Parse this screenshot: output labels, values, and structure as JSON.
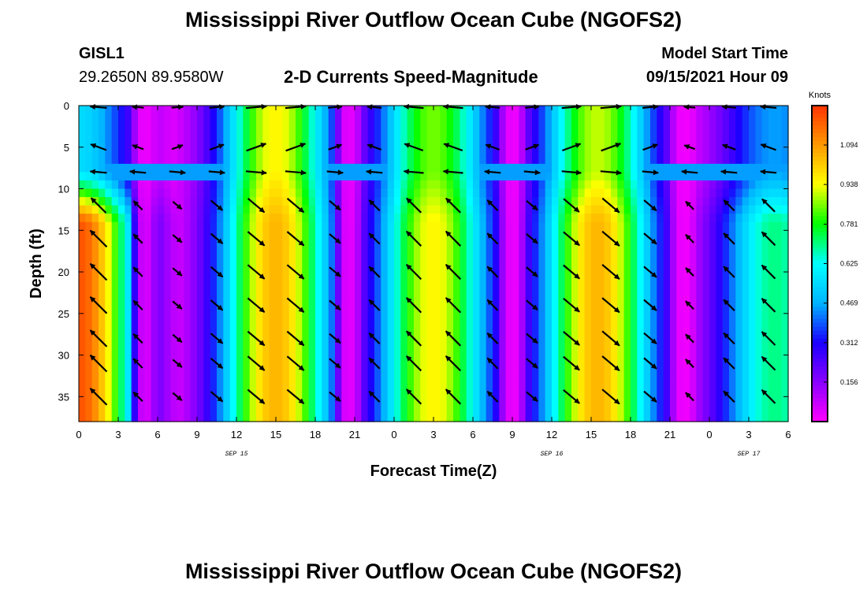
{
  "page": {
    "title_top": "Mississippi River Outflow Ocean Cube (NGOFS2)",
    "title_bottom": "Mississippi River Outflow Ocean Cube (NGOFS2)",
    "station_id": "GISL1",
    "station_coords": "29.2650N  89.9580W",
    "product_title": "2-D Currents Speed-Magnitude",
    "model_start_label": "Model Start Time",
    "model_start_value": "09/15/2021 Hour 09"
  },
  "colors": {
    "scale": [
      "#ff00ff",
      "#8a00ff",
      "#1a00ff",
      "#00b4ff",
      "#00ffff",
      "#00ff00",
      "#ffff00",
      "#ff9900",
      "#ff3300"
    ]
  },
  "chart_data": {
    "type": "heatmap",
    "title": "2-D Currents Speed-Magnitude",
    "xlabel": "Forecast Time(Z)",
    "ylabel": "Depth (ft)",
    "xlim": [
      0,
      54
    ],
    "ylim": [
      38,
      0
    ],
    "x_ticks": [
      "0",
      "3",
      "6",
      "9",
      "12",
      "15",
      "18",
      "21",
      "0",
      "3",
      "6",
      "9",
      "12",
      "15",
      "18",
      "21",
      "0",
      "3",
      "6"
    ],
    "y_ticks": [
      "0",
      "5",
      "10",
      "15",
      "20",
      "25",
      "30",
      "35"
    ],
    "date_labels": [
      {
        "hour": 12,
        "text": "SEP 15"
      },
      {
        "hour": 36,
        "text": "SEP 16"
      },
      {
        "hour": 51,
        "text": "SEP 17"
      }
    ],
    "colorbar": {
      "unit": "Knots",
      "ticks": [
        "1.094",
        "0.938",
        "0.781",
        "0.625",
        "0.469",
        "0.312",
        "0.156"
      ],
      "tick_values": [
        1.094,
        0.938,
        0.781,
        0.625,
        0.469,
        0.312,
        0.156
      ],
      "range": [
        0.0,
        1.25
      ]
    },
    "speed_peaks": [
      {
        "hour": 0,
        "amp_bottom": 1.2,
        "amp_surface": 0.55
      },
      {
        "hour": 15,
        "amp_bottom": 1.05,
        "amp_surface": 0.95
      },
      {
        "hour": 27,
        "amp_bottom": 0.95,
        "amp_surface": 0.85
      },
      {
        "hour": 39.5,
        "amp_bottom": 1.05,
        "amp_surface": 0.9
      },
      {
        "hour": 53,
        "amp_bottom": 0.7,
        "amp_surface": 0.45
      }
    ],
    "flow_reversals": [
      5,
      20.5,
      33,
      46
    ],
    "peak_width_hours": 4.5
  }
}
